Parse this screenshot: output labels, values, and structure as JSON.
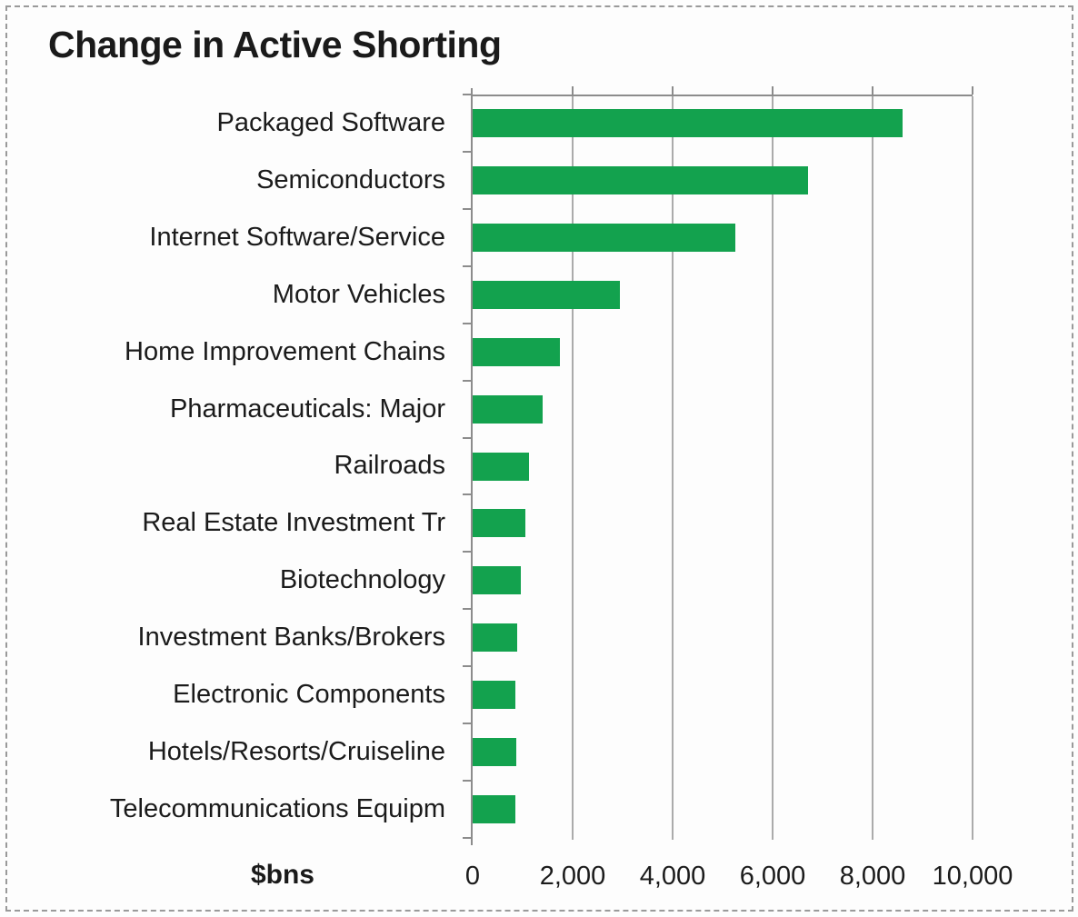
{
  "chart_data": {
    "type": "bar",
    "orientation": "horizontal",
    "title": "Change in Active Shorting",
    "xlabel": "$bns",
    "ylabel": "",
    "categories": [
      "Packaged Software",
      "Semiconductors",
      "Internet Software/Service",
      "Motor Vehicles",
      "Home Improvement Chains",
      "Pharmaceuticals: Major",
      "Railroads",
      "Real Estate Investment Tr",
      "Biotechnology",
      "Investment Banks/Brokers",
      "Electronic Components",
      "Hotels/Resorts/Cruiseline",
      "Telecommunications Equipm"
    ],
    "values": [
      8600,
      6700,
      5250,
      2950,
      1750,
      1400,
      1130,
      1050,
      960,
      890,
      860,
      870,
      850
    ],
    "xlim": [
      0,
      10000
    ],
    "x_ticks": [
      0,
      2000,
      4000,
      6000,
      8000,
      10000
    ],
    "x_tick_labels": [
      "0",
      "2,000",
      "4,000",
      "6,000",
      "8,000",
      "10,000"
    ],
    "grid": true,
    "legend": false,
    "colors": {
      "bar": "#13a24e",
      "gridline": "#ababab",
      "axis": "#8c8c8c",
      "text": "#1b1b1b",
      "frame_dashed_border": "#9a9a9a",
      "background": "#fdfdfd"
    }
  }
}
